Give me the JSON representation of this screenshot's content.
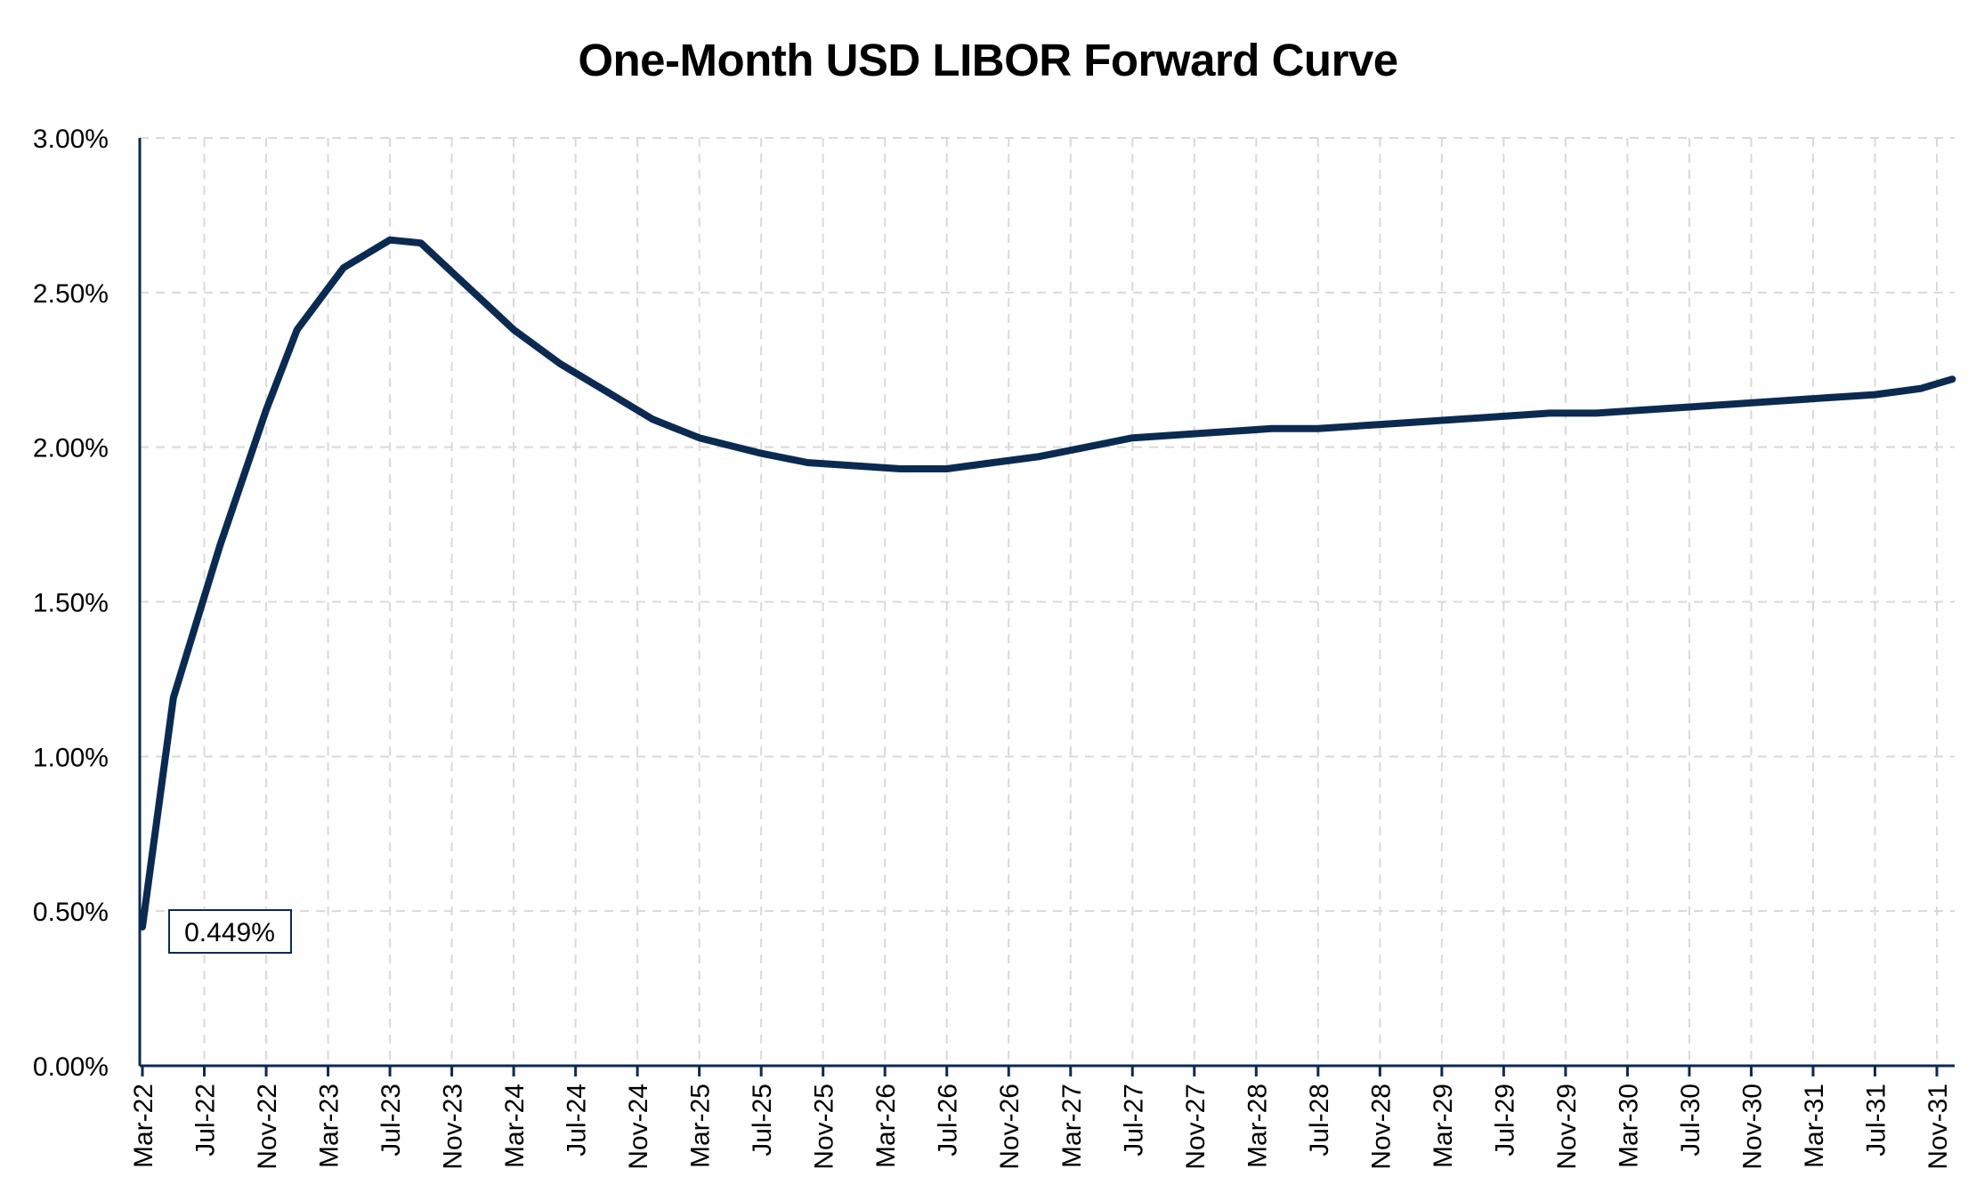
{
  "chart_data": {
    "type": "line",
    "title": "One-Month USD LIBOR Forward Curve",
    "xlabel": "",
    "ylabel": "",
    "ylim": [
      0,
      3.0
    ],
    "y_ticks": [
      "0.00%",
      "0.50%",
      "1.00%",
      "1.50%",
      "2.00%",
      "2.50%",
      "3.00%"
    ],
    "y_tick_values": [
      0,
      0.5,
      1.0,
      1.5,
      2.0,
      2.5,
      3.0
    ],
    "x_ticks": [
      "Mar-22",
      "Jul-22",
      "Nov-22",
      "Mar-23",
      "Jul-23",
      "Nov-23",
      "Mar-24",
      "Jul-24",
      "Nov-24",
      "Mar-25",
      "Jul-25",
      "Nov-25",
      "Mar-26",
      "Jul-26",
      "Nov-26",
      "Mar-27",
      "Jul-27",
      "Nov-27",
      "Mar-28",
      "Jul-28",
      "Nov-28",
      "Mar-29",
      "Jul-29",
      "Nov-29",
      "Mar-30",
      "Jul-30",
      "Nov-30",
      "Mar-31",
      "Jul-31",
      "Nov-31"
    ],
    "grid": true,
    "line_color": "#0b2a52",
    "series": [
      {
        "x": [
          "Mar-22",
          "May-22",
          "Aug-22",
          "Nov-22",
          "Jan-23",
          "Apr-23",
          "Jul-23",
          "Sep-23",
          "Dec-23",
          "Mar-24",
          "Jun-24",
          "Sep-24",
          "Dec-24",
          "Mar-25",
          "Jul-25",
          "Oct-25",
          "Jan-26",
          "Apr-26",
          "Jul-26",
          "Oct-26",
          "Jan-27",
          "Apr-27",
          "Jul-27",
          "Oct-27",
          "Jan-28",
          "Apr-28",
          "Jul-28",
          "Oct-28",
          "Jan-29",
          "Apr-29",
          "Jul-29",
          "Oct-29",
          "Jan-30",
          "Apr-30",
          "Jul-30",
          "Oct-30",
          "Jan-31",
          "Apr-31",
          "Jul-31",
          "Oct-31",
          "Dec-31"
        ],
        "values": [
          0.449,
          1.19,
          1.68,
          2.12,
          2.38,
          2.58,
          2.67,
          2.66,
          2.52,
          2.38,
          2.27,
          2.18,
          2.09,
          2.03,
          1.98,
          1.95,
          1.94,
          1.93,
          1.93,
          1.95,
          1.97,
          2.0,
          2.03,
          2.04,
          2.05,
          2.06,
          2.06,
          2.07,
          2.08,
          2.09,
          2.1,
          2.11,
          2.11,
          2.12,
          2.13,
          2.14,
          2.15,
          2.16,
          2.17,
          2.19,
          2.22
        ]
      }
    ],
    "annotation": {
      "text": "0.449%",
      "x": "Mar-22",
      "y": 0.449
    }
  }
}
